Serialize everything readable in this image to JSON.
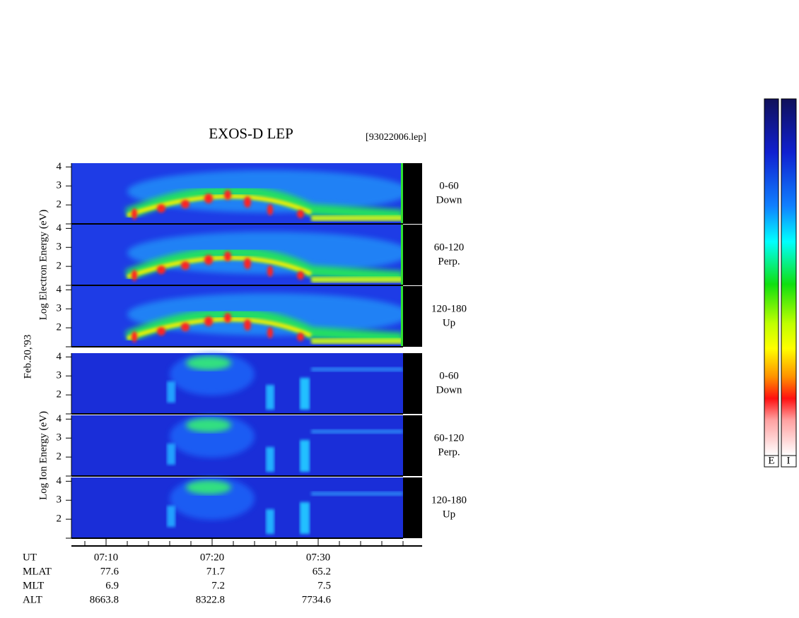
{
  "header": {
    "title": "EXOS-D LEP",
    "file": "[93022006.lep]"
  },
  "y_axis": {
    "electron_label": "Log Electron Energy (eV)",
    "date": "Feb.20,'93",
    "ion_label": "Log Ion Energy (eV)",
    "ylim": [
      1,
      4.2
    ],
    "yticks": [
      2,
      3,
      4
    ]
  },
  "pitch_angles": [
    {
      "range": "0-60",
      "direction": "Down"
    },
    {
      "range": "60-120",
      "direction": "Perp."
    },
    {
      "range": "120-180",
      "direction": "Up"
    }
  ],
  "x_axis": {
    "ticks": [
      "07:10",
      "07:20",
      "07:30"
    ]
  },
  "ephemeris": {
    "labels": [
      "UT",
      "MLAT",
      "MLT",
      "ALT"
    ],
    "values": [
      [
        77.6,
        71.7,
        65.2
      ],
      [
        6.9,
        7.2,
        7.5
      ],
      [
        8663.8,
        8322.8,
        7734.6
      ]
    ]
  },
  "colorbars": [
    "E",
    "I"
  ]
}
